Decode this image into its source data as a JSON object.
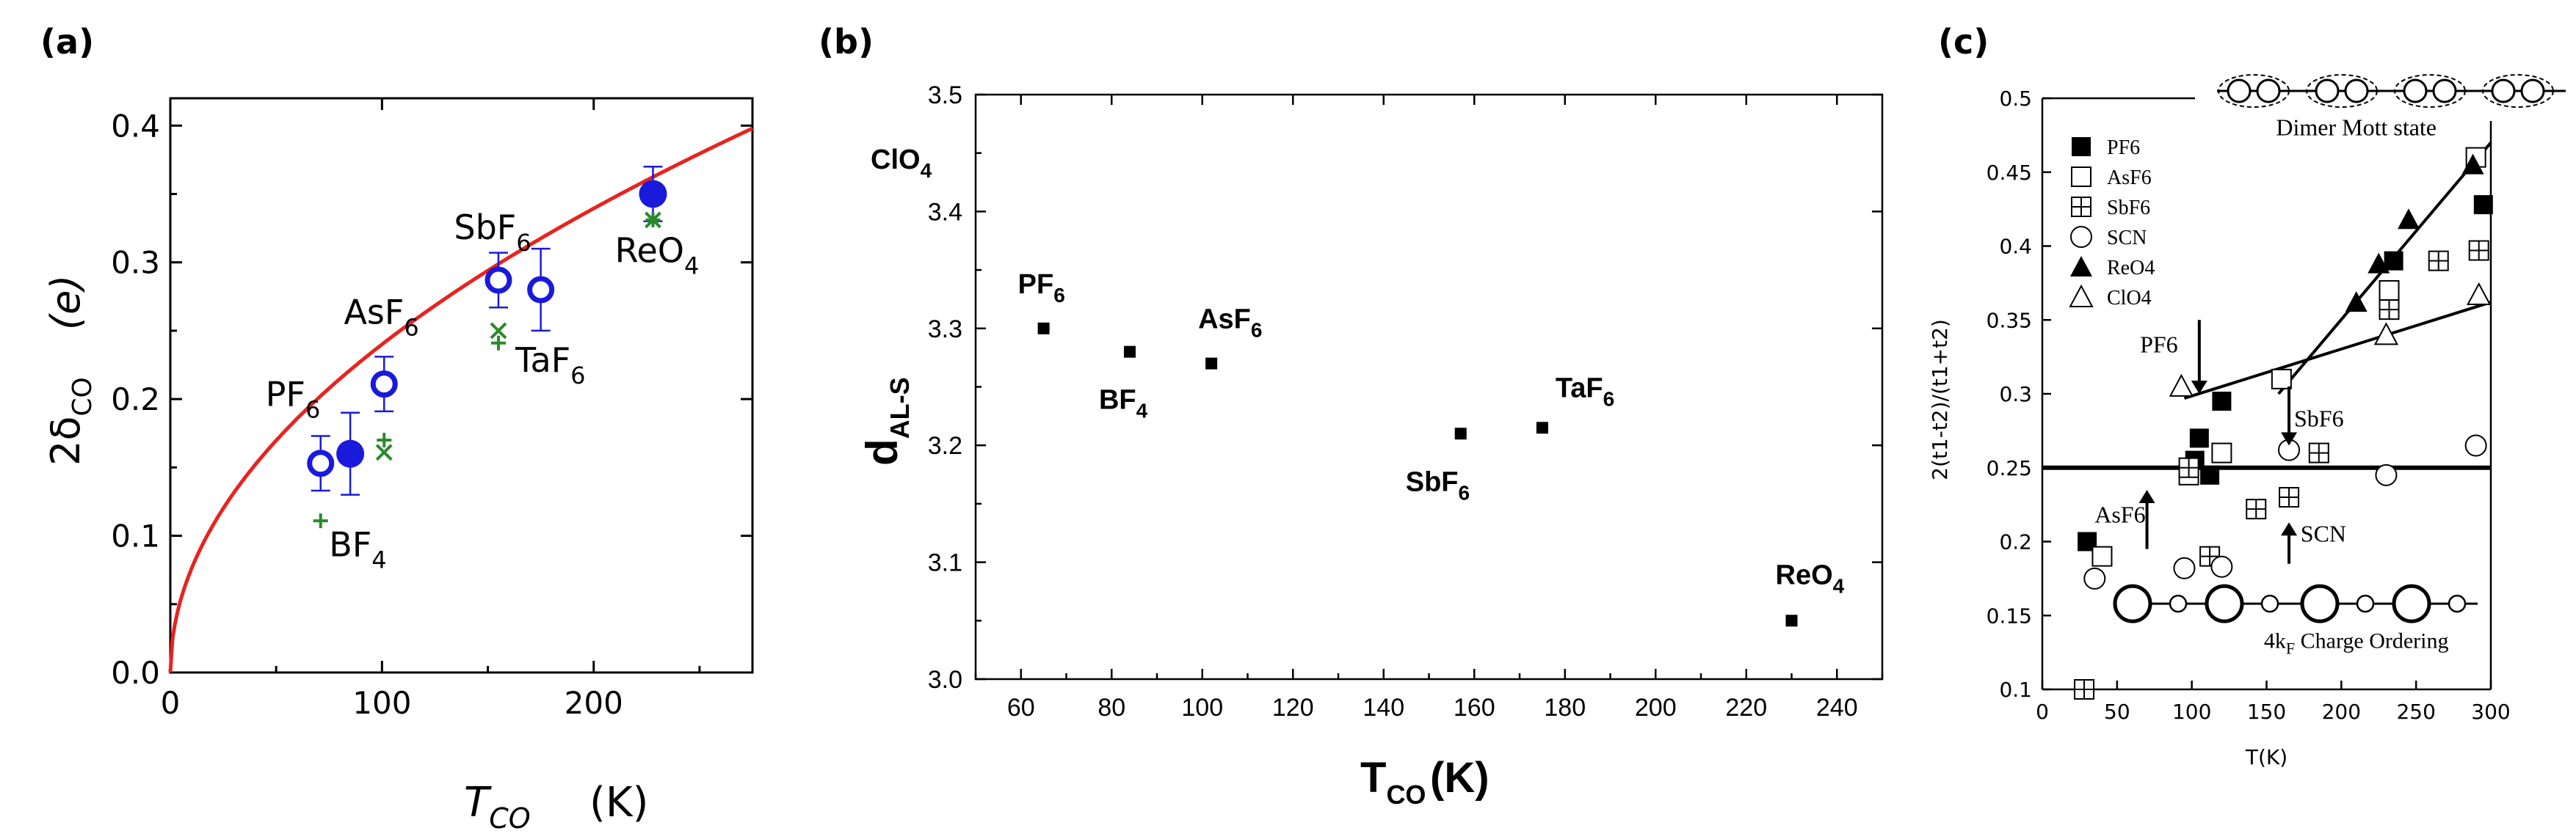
{
  "chart_data": [
    {
      "panel_label": "(a)",
      "type": "scatter",
      "xlabel": {
        "main": "T",
        "sub": "CO",
        "unit": "(K)"
      },
      "ylabel": {
        "main": "2δ",
        "sub": "CO",
        "unit": "(e)"
      },
      "xlim": [
        0,
        275
      ],
      "ylim": [
        0,
        0.42
      ],
      "xticks": [
        0,
        100,
        200
      ],
      "xtick_labels": [
        "0",
        "100",
        "200"
      ],
      "yticks": [
        0.0,
        0.1,
        0.2,
        0.3,
        0.4
      ],
      "ytick_labels": [
        "0.0",
        "0.1",
        "0.2",
        "0.3",
        "0.4"
      ],
      "grid": false,
      "fit_curve": {
        "form": "a*sqrt(x)",
        "a": 0.024,
        "color": "#e8231f"
      },
      "series": [
        {
          "marker": "open-circle",
          "color": "#1a1adb",
          "points": [
            {
              "x": 71,
              "y": 0.153,
              "err": 0.02
            },
            {
              "x": 101,
              "y": 0.211,
              "err": 0.02
            },
            {
              "x": 155,
              "y": 0.287,
              "err": 0.02
            },
            {
              "x": 175,
              "y": 0.28,
              "err": 0.03
            }
          ]
        },
        {
          "marker": "filled-circle",
          "color": "#1a1adb",
          "points": [
            {
              "x": 85,
              "y": 0.16,
              "err": 0.03
            },
            {
              "x": 228,
              "y": 0.35,
              "err": 0.02
            }
          ]
        },
        {
          "marker": "plus",
          "color": "#2a8a2a",
          "points": [
            {
              "x": 71,
              "y": 0.111
            },
            {
              "x": 101,
              "y": 0.17
            },
            {
              "x": 155,
              "y": 0.241
            },
            {
              "x": 228,
              "y": 0.331
            }
          ]
        },
        {
          "marker": "cross",
          "color": "#2a8a2a",
          "points": [
            {
              "x": 101,
              "y": 0.161
            },
            {
              "x": 155,
              "y": 0.25
            },
            {
              "x": 228,
              "y": 0.331
            }
          ]
        }
      ],
      "annotations": [
        {
          "text": "PF",
          "sub": "6",
          "x": 45,
          "y": 0.195
        },
        {
          "text": "AsF",
          "sub": "6",
          "x": 82,
          "y": 0.255
        },
        {
          "text": "SbF",
          "sub": "6",
          "x": 134,
          "y": 0.317
        },
        {
          "text": "TaF",
          "sub": "6",
          "x": 163,
          "y": 0.22
        },
        {
          "text": "ReO",
          "sub": "4",
          "x": 210,
          "y": 0.3
        },
        {
          "text": "BF",
          "sub": "4",
          "x": 75,
          "y": 0.085
        }
      ]
    },
    {
      "panel_label": "(b)",
      "type": "scatter",
      "xlabel": {
        "main": "T",
        "sub": "CO",
        "unit": "(K)"
      },
      "ylabel": {
        "main": "d",
        "sub": "AL-S"
      },
      "xlim": [
        50,
        250
      ],
      "ylim": [
        3.0,
        3.5
      ],
      "xticks": [
        60,
        80,
        100,
        120,
        140,
        160,
        180,
        200,
        220,
        240
      ],
      "xtick_labels": [
        "60",
        "80",
        "100",
        "120",
        "140",
        "160",
        "180",
        "200",
        "220",
        "240"
      ],
      "yticks": [
        3.0,
        3.1,
        3.2,
        3.3,
        3.4,
        3.5
      ],
      "ytick_labels": [
        "3.0",
        "3.1",
        "3.2",
        "3.3",
        "3.4",
        "3.5"
      ],
      "grid": false,
      "marker": "filled-square",
      "color": "#000000",
      "points": [
        {
          "x": 65,
          "y": 3.3,
          "label": "PF",
          "sub": "6"
        },
        {
          "x": 84,
          "y": 3.28,
          "label": "BF",
          "sub": "4"
        },
        {
          "x": 102,
          "y": 3.27,
          "label": "AsF",
          "sub": "6"
        },
        {
          "x": 157,
          "y": 3.21,
          "label": "SbF",
          "sub": "6"
        },
        {
          "x": 175,
          "y": 3.215,
          "label": "TaF",
          "sub": "6"
        },
        {
          "x": 230,
          "y": 3.05,
          "label": "ReO",
          "sub": "4"
        }
      ],
      "extra_text": {
        "text": "ClO",
        "sub": "4"
      }
    },
    {
      "panel_label": "(c)",
      "type": "scatter",
      "xlabel": "T(K)",
      "ylabel": "2(t1-t2)/(t1+t2)",
      "xlim": [
        0,
        300
      ],
      "ylim": [
        0.1,
        0.5
      ],
      "xticks": [
        0,
        50,
        100,
        150,
        200,
        250,
        300
      ],
      "xtick_labels": [
        "0",
        "50",
        "100",
        "150",
        "200",
        "250",
        "300"
      ],
      "yticks": [
        0.1,
        0.15,
        0.2,
        0.25,
        0.3,
        0.35,
        0.4,
        0.45,
        0.5
      ],
      "ytick_labels": [
        "0.1",
        "0.15",
        "0.2",
        "0.25",
        "0.3",
        "0.35",
        "0.4",
        "0.45",
        "0.5"
      ],
      "grid": false,
      "legend_position": "top-left",
      "boundary_line_y": 0.25,
      "fit_lines": [
        {
          "from": [
            95,
            0.297
          ],
          "to": [
            300,
            0.362
          ]
        },
        {
          "from": [
            158,
            0.3
          ],
          "to": [
            300,
            0.47
          ]
        }
      ],
      "series": [
        {
          "name": "PF6",
          "marker": "filled-square",
          "points": [
            [
              30,
              0.2
            ],
            [
              102,
              0.255
            ],
            [
              105,
              0.27
            ],
            [
              112,
              0.245
            ],
            [
              120,
              0.295
            ],
            [
              160,
              0.31
            ],
            [
              235,
              0.39
            ],
            [
              295,
              0.428
            ]
          ]
        },
        {
          "name": "AsF6",
          "marker": "open-square",
          "points": [
            [
              40,
              0.19
            ],
            [
              98,
              0.245
            ],
            [
              120,
              0.26
            ],
            [
              160,
              0.31
            ],
            [
              232,
              0.37
            ],
            [
              290,
              0.46
            ]
          ]
        },
        {
          "name": "SbF6",
          "marker": "boxed-plus",
          "points": [
            [
              28,
              0.1
            ],
            [
              98,
              0.25
            ],
            [
              112,
              0.19
            ],
            [
              143,
              0.222
            ],
            [
              165,
              0.23
            ],
            [
              185,
              0.26
            ],
            [
              232,
              0.357
            ],
            [
              265,
              0.39
            ],
            [
              292,
              0.397
            ]
          ]
        },
        {
          "name": "SCN",
          "marker": "open-circle",
          "points": [
            [
              35,
              0.175
            ],
            [
              95,
              0.182
            ],
            [
              120,
              0.183
            ],
            [
              165,
              0.262
            ],
            [
              230,
              0.245
            ],
            [
              290,
              0.265
            ]
          ]
        },
        {
          "name": "ReO4",
          "marker": "filled-triangle",
          "points": [
            [
              210,
              0.362
            ],
            [
              225,
              0.388
            ],
            [
              245,
              0.418
            ],
            [
              288,
              0.455
            ]
          ]
        },
        {
          "name": "ClO4",
          "marker": "open-triangle",
          "points": [
            [
              93,
              0.305
            ],
            [
              230,
              0.34
            ],
            [
              292,
              0.367
            ]
          ]
        }
      ],
      "annotations": [
        {
          "text": "PF6",
          "x": 78,
          "y": 0.328
        },
        {
          "text": "SbF6",
          "x": 185,
          "y": 0.278
        },
        {
          "text": "AsF6",
          "x": 52,
          "y": 0.213
        },
        {
          "text": "SCN",
          "x": 188,
          "y": 0.2
        },
        {
          "text": "Dimer Mott state",
          "x": 210,
          "y": 0.475
        },
        {
          "text": "4k",
          "sub": "F",
          "rest": " Charge Ordering",
          "x": 210,
          "y": 0.128
        }
      ],
      "arrows": [
        {
          "x": 105,
          "y_from": 0.35,
          "y_to": 0.3
        },
        {
          "x": 165,
          "y_from": 0.305,
          "y_to": 0.265
        },
        {
          "x": 70,
          "y_from": 0.195,
          "y_to": 0.235
        },
        {
          "x": 165,
          "y_from": 0.185,
          "y_to": 0.213
        }
      ]
    }
  ]
}
